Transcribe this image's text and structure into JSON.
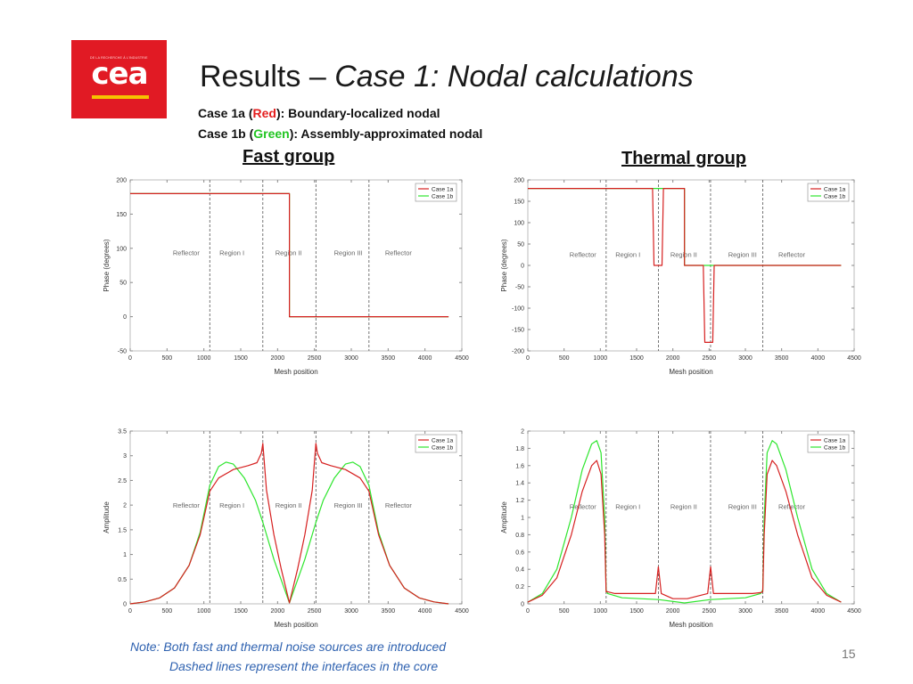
{
  "logo": {
    "small_text": "DE LA RECHERCHE À L'INDUSTRIE",
    "word": "cea"
  },
  "title": {
    "prefix": "Results – ",
    "italic": "Case 1: Nodal calculations"
  },
  "cases": [
    {
      "label_start": "Case 1a (",
      "color_word": "Red",
      "label_end": "): Boundary-localized nodal"
    },
    {
      "label_start": "Case 1b (",
      "color_word": "Green",
      "label_end": "): Assembly-approximated nodal"
    }
  ],
  "groups": {
    "fast": "Fast group",
    "thermal": "Thermal group"
  },
  "colors": {
    "case1a": "#d62020",
    "case1b": "#2ee62e",
    "interface": "#555555",
    "logo": "#e11a24"
  },
  "note": {
    "line1": "Note: Both fast and thermal noise sources are introduced",
    "line2": "Dashed lines represent the interfaces in the core"
  },
  "page_number": "15",
  "chart_data": [
    {
      "id": "fast_phase",
      "type": "line",
      "xlabel": "Mesh position",
      "ylabel": "Phase (degrees)",
      "xlim": [
        0,
        4500
      ],
      "ylim": [
        -50,
        200
      ],
      "xticks": [
        0,
        500,
        1000,
        1500,
        2000,
        2500,
        3000,
        3500,
        4000,
        4500
      ],
      "yticks": [
        -50,
        0,
        50,
        100,
        150,
        200
      ],
      "interfaces": [
        1080,
        1800,
        2520,
        3240
      ],
      "regions": [
        {
          "label": "Reflector",
          "x": 760,
          "y": 90
        },
        {
          "label": "Region I",
          "x": 1380,
          "y": 90
        },
        {
          "label": "Region II",
          "x": 2150,
          "y": 90
        },
        {
          "label": "Region III",
          "x": 2960,
          "y": 90
        },
        {
          "label": "Reflector",
          "x": 3640,
          "y": 90
        }
      ],
      "legend_position": "top-right",
      "series": [
        {
          "name": "Case 1a",
          "color": "#d62020",
          "x": [
            0,
            2160,
            2160,
            4320
          ],
          "y": [
            180,
            180,
            0,
            0
          ]
        },
        {
          "name": "Case 1b",
          "color": "#2ee62e",
          "x": [
            0,
            2160,
            2160,
            4320
          ],
          "y": [
            180,
            180,
            0,
            0
          ]
        }
      ]
    },
    {
      "id": "thermal_phase",
      "type": "line",
      "xlabel": "Mesh position",
      "ylabel": "Phase (degrees)",
      "xlim": [
        0,
        4500
      ],
      "ylim": [
        -200,
        200
      ],
      "xticks": [
        0,
        500,
        1000,
        1500,
        2000,
        2500,
        3000,
        3500,
        4000,
        4500
      ],
      "yticks": [
        -200,
        -150,
        -100,
        -50,
        0,
        50,
        100,
        150,
        200
      ],
      "interfaces": [
        1080,
        1800,
        2520,
        3240
      ],
      "regions": [
        {
          "label": "Reflector",
          "x": 760,
          "y": 20
        },
        {
          "label": "Region I",
          "x": 1380,
          "y": 20
        },
        {
          "label": "Region II",
          "x": 2150,
          "y": 20
        },
        {
          "label": "Region III",
          "x": 2960,
          "y": 20
        },
        {
          "label": "Reflector",
          "x": 3640,
          "y": 20
        }
      ],
      "legend_position": "top-right",
      "series": [
        {
          "name": "Case 1a",
          "color": "#d62020",
          "x": [
            0,
            1720,
            1740,
            1850,
            1870,
            2160,
            2160,
            2420,
            2440,
            2550,
            2570,
            4320
          ],
          "y": [
            180,
            180,
            0,
            0,
            180,
            180,
            0,
            0,
            -180,
            -180,
            0,
            0
          ]
        },
        {
          "name": "Case 1b",
          "color": "#2ee62e",
          "x": [
            0,
            2160,
            2160,
            4320
          ],
          "y": [
            180,
            180,
            0,
            0
          ]
        }
      ]
    },
    {
      "id": "fast_amplitude",
      "type": "line",
      "xlabel": "Mesh position",
      "ylabel": "Amplitude",
      "xlim": [
        0,
        4500
      ],
      "ylim": [
        0,
        3.5
      ],
      "xticks": [
        0,
        500,
        1000,
        1500,
        2000,
        2500,
        3000,
        3500,
        4000,
        4500
      ],
      "yticks": [
        0,
        0.5,
        1,
        1.5,
        2,
        2.5,
        3,
        3.5
      ],
      "interfaces": [
        1080,
        1800,
        2520,
        3240
      ],
      "regions": [
        {
          "label": "Reflector",
          "x": 760,
          "y": 1.95
        },
        {
          "label": "Region I",
          "x": 1380,
          "y": 1.95
        },
        {
          "label": "Region II",
          "x": 2150,
          "y": 1.95
        },
        {
          "label": "Region III",
          "x": 2960,
          "y": 1.95
        },
        {
          "label": "Reflector",
          "x": 3640,
          "y": 1.95
        }
      ],
      "legend_position": "top-right",
      "series": [
        {
          "name": "Case 1a",
          "color": "#d62020",
          "x": [
            0,
            200,
            400,
            600,
            800,
            950,
            1080,
            1200,
            1400,
            1600,
            1720,
            1780,
            1800,
            1850,
            1950,
            2050,
            2160,
            2270,
            2370,
            2470,
            2520,
            2540,
            2600,
            2720,
            2920,
            3120,
            3240,
            3370,
            3520,
            3720,
            3920,
            4120,
            4320
          ],
          "y": [
            0,
            0.04,
            0.12,
            0.32,
            0.78,
            1.4,
            2.28,
            2.55,
            2.72,
            2.8,
            2.86,
            3.05,
            3.25,
            2.3,
            1.4,
            0.7,
            0.02,
            0.7,
            1.4,
            2.3,
            3.25,
            3.05,
            2.86,
            2.8,
            2.72,
            2.55,
            2.28,
            1.4,
            0.78,
            0.32,
            0.12,
            0.04,
            0
          ]
        },
        {
          "name": "Case 1b",
          "color": "#2ee62e",
          "x": [
            0,
            200,
            400,
            600,
            800,
            950,
            1080,
            1200,
            1300,
            1400,
            1550,
            1700,
            1800,
            1950,
            2160,
            2370,
            2520,
            2620,
            2770,
            2920,
            3020,
            3120,
            3240,
            3370,
            3520,
            3720,
            3920,
            4120,
            4320
          ],
          "y": [
            0,
            0.04,
            0.12,
            0.32,
            0.78,
            1.45,
            2.4,
            2.78,
            2.87,
            2.83,
            2.55,
            2.1,
            1.65,
            0.9,
            0.02,
            0.9,
            1.65,
            2.1,
            2.55,
            2.83,
            2.87,
            2.78,
            2.4,
            1.45,
            0.78,
            0.32,
            0.12,
            0.04,
            0
          ]
        }
      ]
    },
    {
      "id": "thermal_amplitude",
      "type": "line",
      "xlabel": "Mesh position",
      "ylabel": "Amplitude",
      "xlim": [
        0,
        4500
      ],
      "ylim": [
        0,
        2
      ],
      "xticks": [
        0,
        500,
        1000,
        1500,
        2000,
        2500,
        3000,
        3500,
        4000,
        4500
      ],
      "yticks": [
        0,
        0.2,
        0.4,
        0.6,
        0.8,
        1,
        1.2,
        1.4,
        1.6,
        1.8,
        2
      ],
      "interfaces": [
        1080,
        1800,
        2520,
        3240
      ],
      "regions": [
        {
          "label": "Reflector",
          "x": 760,
          "y": 1.1
        },
        {
          "label": "Region I",
          "x": 1380,
          "y": 1.1
        },
        {
          "label": "Region II",
          "x": 2150,
          "y": 1.1
        },
        {
          "label": "Region III",
          "x": 2960,
          "y": 1.1
        },
        {
          "label": "Reflector",
          "x": 3640,
          "y": 1.1
        }
      ],
      "legend_position": "top-right",
      "series": [
        {
          "name": "Case 1a",
          "color": "#d62020",
          "x": [
            0,
            200,
            400,
            600,
            750,
            880,
            950,
            1010,
            1060,
            1080,
            1100,
            1200,
            1500,
            1760,
            1800,
            1840,
            2000,
            2200,
            2480,
            2520,
            2560,
            2800,
            3100,
            3210,
            3240,
            3260,
            3300,
            3370,
            3430,
            3560,
            3720,
            3920,
            4120,
            4320
          ],
          "y": [
            0.02,
            0.1,
            0.3,
            0.8,
            1.3,
            1.6,
            1.66,
            1.5,
            0.8,
            0.14,
            0.14,
            0.12,
            0.12,
            0.12,
            0.43,
            0.12,
            0.06,
            0.06,
            0.12,
            0.43,
            0.12,
            0.12,
            0.12,
            0.13,
            0.14,
            0.8,
            1.5,
            1.66,
            1.6,
            1.3,
            0.8,
            0.3,
            0.1,
            0.02
          ]
        },
        {
          "name": "Case 1b",
          "color": "#2ee62e",
          "x": [
            0,
            200,
            400,
            600,
            750,
            880,
            950,
            1010,
            1060,
            1080,
            1100,
            1300,
            1800,
            2160,
            2520,
            3000,
            3210,
            3240,
            3260,
            3300,
            3370,
            3430,
            3560,
            3720,
            3920,
            4120,
            4320
          ],
          "y": [
            0.02,
            0.12,
            0.4,
            1.0,
            1.55,
            1.85,
            1.89,
            1.75,
            1.0,
            0.16,
            0.12,
            0.07,
            0.05,
            0.01,
            0.05,
            0.07,
            0.12,
            0.16,
            1.0,
            1.75,
            1.89,
            1.85,
            1.55,
            1.0,
            0.4,
            0.12,
            0.02
          ]
        }
      ]
    }
  ]
}
